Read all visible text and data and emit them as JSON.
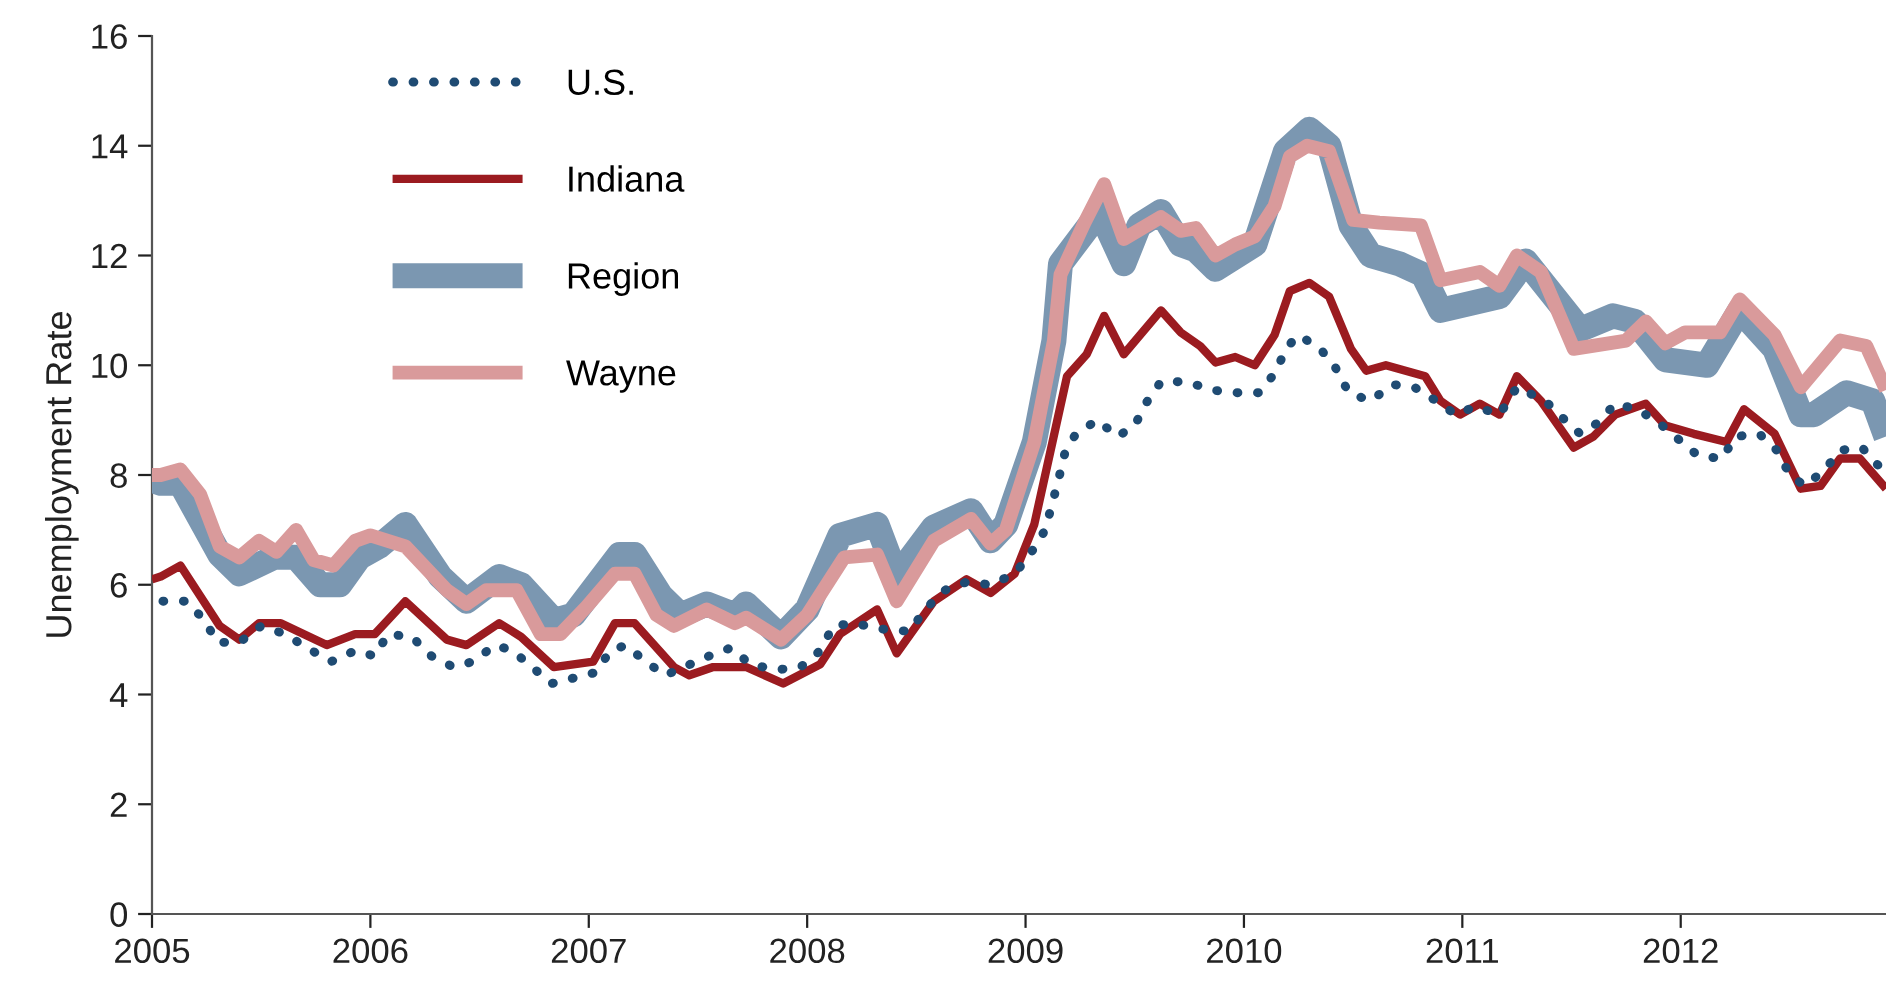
{
  "chart_data": {
    "type": "line",
    "ylabel": "Unemployment Rate",
    "xlim": [
      2005,
      2012.94
    ],
    "xticks": [
      2005,
      2006,
      2007,
      2008,
      2009,
      2010,
      2011,
      2012
    ],
    "ylim": [
      0,
      16
    ],
    "yticks": [
      0,
      2,
      4,
      6,
      8,
      10,
      12,
      14,
      16
    ],
    "grid": false,
    "legend": "top left",
    "series": [
      {
        "name": "U.S.",
        "color": "#1f4b73",
        "line_style": "dotted",
        "x": [
          2005.05,
          2005.16,
          2005.24,
          2005.3,
          2005.4,
          2005.5,
          2005.61,
          2005.71,
          2005.82,
          2005.93,
          2006.02,
          2006.08,
          2006.19,
          2006.28,
          2006.38,
          2006.47,
          2006.57,
          2006.65,
          2006.74,
          2006.83,
          2006.93,
          2007.03,
          2007.1,
          2007.17,
          2007.26,
          2007.35,
          2007.55,
          2007.65,
          2007.74,
          2007.86,
          2007.97,
          2008.06,
          2008.12,
          2008.22,
          2008.32,
          2008.47,
          2008.54,
          2008.63,
          2008.73,
          2008.84,
          2008.95,
          2009.02,
          2009.09,
          2009.12,
          2009.15,
          2009.18,
          2009.23,
          2009.33,
          2009.42,
          2009.5,
          2009.55,
          2009.62,
          2009.74,
          2009.85,
          2009.96,
          2010.07,
          2010.15,
          2010.19,
          2010.25,
          2010.35,
          2010.42,
          2010.48,
          2010.58,
          2010.68,
          2010.78,
          2010.88,
          2010.97,
          2011.06,
          2011.17,
          2011.25,
          2011.38,
          2011.47,
          2011.54,
          2011.62,
          2011.7,
          2011.8,
          2011.9,
          2011.99,
          2012.08,
          2012.19,
          2012.25,
          2012.36,
          2012.44,
          2012.5,
          2012.57,
          2012.66,
          2012.73,
          2012.83,
          2012.91
        ],
        "values": [
          5.7,
          5.7,
          5.35,
          4.95,
          4.95,
          5.25,
          5.1,
          4.85,
          4.6,
          4.8,
          4.7,
          5.1,
          5.05,
          4.7,
          4.5,
          4.6,
          4.9,
          4.8,
          4.5,
          4.2,
          4.3,
          4.4,
          4.8,
          4.9,
          4.6,
          4.35,
          4.7,
          4.85,
          4.55,
          4.45,
          4.5,
          4.8,
          5.25,
          5.3,
          5.2,
          5.15,
          5.55,
          5.9,
          6.05,
          6.0,
          6.2,
          6.55,
          7.0,
          7.45,
          7.9,
          8.4,
          8.75,
          9.0,
          8.7,
          8.9,
          9.3,
          9.7,
          9.7,
          9.55,
          9.5,
          9.5,
          9.9,
          10.3,
          10.55,
          10.3,
          9.95,
          9.5,
          9.35,
          9.65,
          9.6,
          9.35,
          9.1,
          9.25,
          9.1,
          9.6,
          9.35,
          9.0,
          8.75,
          8.95,
          9.3,
          9.2,
          8.95,
          8.65,
          8.35,
          8.3,
          8.7,
          8.75,
          8.45,
          8.0,
          7.8,
          8.1,
          8.45,
          8.5,
          8.15
        ]
      },
      {
        "name": "Indiana",
        "color": "#9b1b20",
        "line_style": "solid",
        "x": [
          2005.0,
          2005.04,
          2005.13,
          2005.31,
          2005.4,
          2005.49,
          2005.59,
          2005.8,
          2005.93,
          2006.02,
          2006.16,
          2006.35,
          2006.44,
          2006.59,
          2006.69,
          2006.84,
          2007.02,
          2007.12,
          2007.21,
          2007.39,
          2007.46,
          2007.57,
          2007.72,
          2007.89,
          2008.06,
          2008.15,
          2008.32,
          2008.41,
          2008.58,
          2008.73,
          2008.84,
          2008.95,
          2009.04,
          2009.19,
          2009.28,
          2009.36,
          2009.45,
          2009.62,
          2009.71,
          2009.8,
          2009.87,
          2009.96,
          2010.05,
          2010.14,
          2010.21,
          2010.3,
          2010.39,
          2010.49,
          2010.56,
          2010.65,
          2010.83,
          2010.9,
          2010.99,
          2011.08,
          2011.17,
          2011.25,
          2011.36,
          2011.51,
          2011.6,
          2011.7,
          2011.84,
          2011.93,
          2012.06,
          2012.21,
          2012.29,
          2012.43,
          2012.55,
          2012.64,
          2012.73,
          2012.82,
          2012.94
        ],
        "values": [
          6.1,
          6.15,
          6.35,
          5.25,
          5.0,
          5.3,
          5.3,
          4.9,
          5.1,
          5.1,
          5.7,
          5.0,
          4.9,
          5.3,
          5.05,
          4.5,
          4.6,
          5.3,
          5.3,
          4.5,
          4.35,
          4.5,
          4.5,
          4.2,
          4.55,
          5.1,
          5.55,
          4.75,
          5.7,
          6.1,
          5.85,
          6.2,
          7.1,
          9.8,
          10.2,
          10.9,
          10.2,
          11.0,
          10.6,
          10.35,
          10.05,
          10.15,
          10.0,
          10.55,
          11.35,
          11.5,
          11.25,
          10.3,
          9.9,
          10.0,
          9.8,
          9.35,
          9.1,
          9.3,
          9.1,
          9.8,
          9.35,
          8.5,
          8.7,
          9.1,
          9.3,
          8.9,
          8.75,
          8.6,
          9.2,
          8.75,
          7.75,
          7.8,
          8.3,
          8.3,
          7.75
        ]
      },
      {
        "name": "Region",
        "color": "#7b97b1",
        "line_style": "solid",
        "x": [
          2005.0,
          2005.04,
          2005.13,
          2005.31,
          2005.4,
          2005.56,
          2005.66,
          2005.77,
          2005.86,
          2005.95,
          2006.04,
          2006.16,
          2006.32,
          2006.44,
          2006.59,
          2006.69,
          2006.84,
          2006.93,
          2007.14,
          2007.21,
          2007.33,
          2007.42,
          2007.54,
          2007.67,
          2007.72,
          2007.88,
          2008.0,
          2008.15,
          2008.32,
          2008.41,
          2008.58,
          2008.75,
          2008.84,
          2008.91,
          2009.04,
          2009.13,
          2009.16,
          2009.34,
          2009.45,
          2009.52,
          2009.62,
          2009.71,
          2009.78,
          2009.87,
          2010.05,
          2010.19,
          2010.3,
          2010.39,
          2010.49,
          2010.58,
          2010.71,
          2010.82,
          2010.9,
          2011.17,
          2011.29,
          2011.54,
          2011.69,
          2011.79,
          2011.93,
          2012.12,
          2012.27,
          2012.43,
          2012.55,
          2012.61,
          2012.76,
          2012.88,
          2012.94
        ],
        "values": [
          7.9,
          7.85,
          7.85,
          6.55,
          6.2,
          6.5,
          6.5,
          6.0,
          6.0,
          6.5,
          6.7,
          7.1,
          6.15,
          5.7,
          6.15,
          6.0,
          5.35,
          5.45,
          6.55,
          6.55,
          5.8,
          5.45,
          5.65,
          5.45,
          5.65,
          5.05,
          5.55,
          6.9,
          7.1,
          6.15,
          7.05,
          7.35,
          6.8,
          7.1,
          8.6,
          10.45,
          11.85,
          12.8,
          11.85,
          12.55,
          12.8,
          12.2,
          12.1,
          11.75,
          12.2,
          13.9,
          14.3,
          14.0,
          12.55,
          12.0,
          11.85,
          11.65,
          11.0,
          11.25,
          11.9,
          10.65,
          10.9,
          10.8,
          10.1,
          10.0,
          11.0,
          10.3,
          9.1,
          9.1,
          9.5,
          9.35,
          8.7
        ]
      },
      {
        "name": "Wayne",
        "color": "#d99a9b",
        "line_style": "solid",
        "x": [
          2005.0,
          2005.04,
          2005.13,
          2005.22,
          2005.31,
          2005.4,
          2005.49,
          2005.57,
          2005.66,
          2005.74,
          2005.83,
          2005.93,
          2006.0,
          2006.16,
          2006.35,
          2006.44,
          2006.53,
          2006.67,
          2006.78,
          2006.87,
          2006.99,
          2007.12,
          2007.21,
          2007.31,
          2007.39,
          2007.54,
          2007.67,
          2007.72,
          2007.88,
          2008.0,
          2008.17,
          2008.32,
          2008.41,
          2008.58,
          2008.75,
          2008.84,
          2008.91,
          2009.04,
          2009.13,
          2009.16,
          2009.27,
          2009.36,
          2009.45,
          2009.62,
          2009.71,
          2009.78,
          2009.87,
          2009.96,
          2010.05,
          2010.14,
          2010.21,
          2010.29,
          2010.39,
          2010.5,
          2010.62,
          2010.81,
          2010.9,
          2011.08,
          2011.17,
          2011.25,
          2011.36,
          2011.51,
          2011.75,
          2011.84,
          2011.93,
          2012.02,
          2012.18,
          2012.27,
          2012.43,
          2012.55,
          2012.73,
          2012.85,
          2012.94
        ],
        "values": [
          8.0,
          8.0,
          8.1,
          7.65,
          6.7,
          6.5,
          6.8,
          6.6,
          7.0,
          6.45,
          6.35,
          6.8,
          6.9,
          6.7,
          5.9,
          5.65,
          5.9,
          5.9,
          5.1,
          5.1,
          5.6,
          6.2,
          6.2,
          5.45,
          5.25,
          5.55,
          5.3,
          5.4,
          5.0,
          5.45,
          6.5,
          6.55,
          5.7,
          6.8,
          7.2,
          6.75,
          7.0,
          8.6,
          10.45,
          11.65,
          12.6,
          13.3,
          12.3,
          12.7,
          12.45,
          12.5,
          12.0,
          12.2,
          12.35,
          12.9,
          13.8,
          14.0,
          13.9,
          12.65,
          12.6,
          12.55,
          11.55,
          11.7,
          11.45,
          12.0,
          11.7,
          10.3,
          10.45,
          10.8,
          10.4,
          10.6,
          10.6,
          11.2,
          10.55,
          9.6,
          10.45,
          10.35,
          9.55
        ]
      }
    ]
  }
}
